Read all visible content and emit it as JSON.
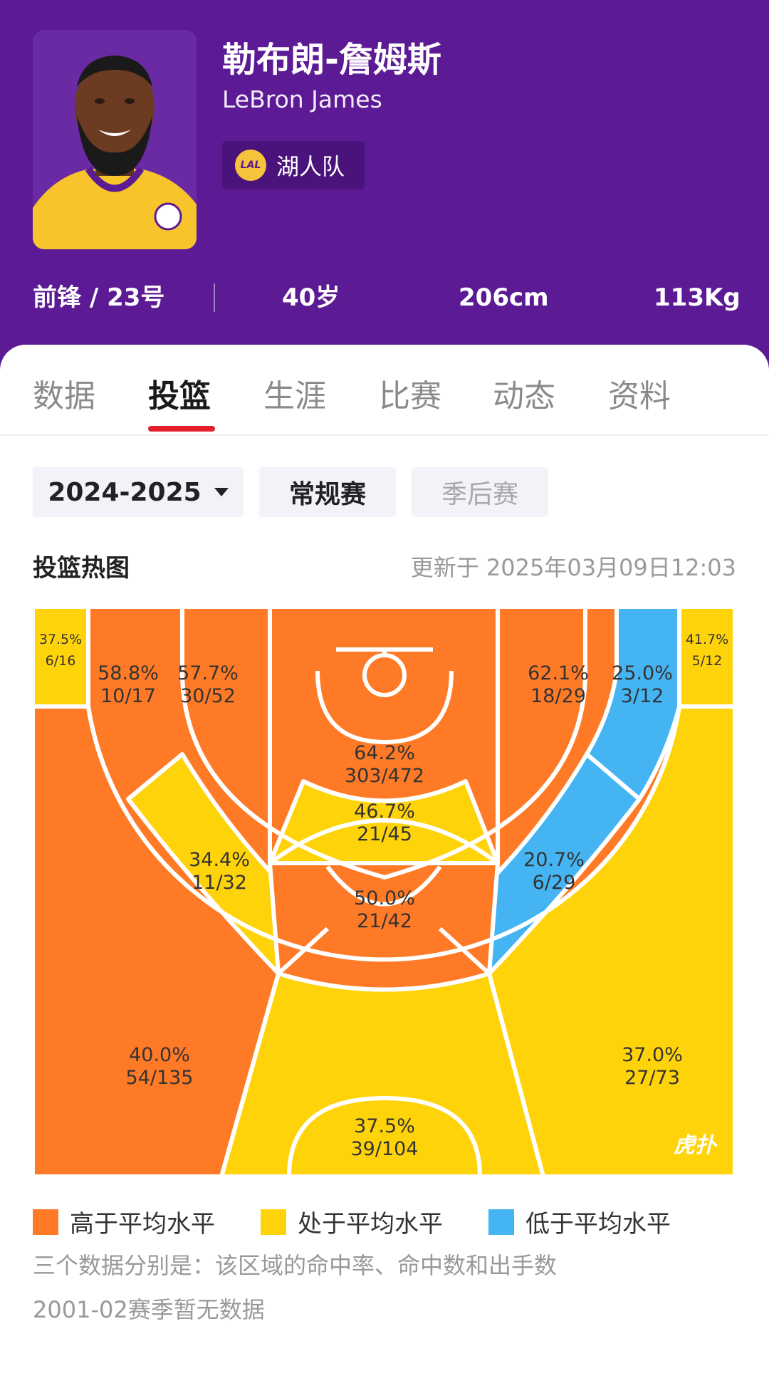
{
  "player": {
    "name_cn": "勒布朗-詹姆斯",
    "name_en": "LeBron James",
    "team": "湖人队",
    "team_logo_text": "LAL",
    "position_number": "前锋 / 23号",
    "age": "40岁",
    "height": "206cm",
    "weight": "113Kg"
  },
  "tabs": [
    "数据",
    "投篮",
    "生涯",
    "比赛",
    "动态",
    "资料"
  ],
  "active_tab": "投篮",
  "filters": {
    "season": "2024-2025",
    "regular": "常规赛",
    "playoffs": "季后赛"
  },
  "section": {
    "title": "投篮热图",
    "updated": "更新于 2025年03月09日12:03"
  },
  "colors": {
    "above": "#ff7a26",
    "average": "#ffd30a",
    "below": "#45b4f2",
    "header": "#5c1b94",
    "accent": "#e4202e"
  },
  "zones": [
    {
      "id": "left-corner-3",
      "pct": "37.5%",
      "made": "6/16",
      "level": "average"
    },
    {
      "id": "left-baseline-mid",
      "pct": "58.8%",
      "made": "10/17",
      "level": "above"
    },
    {
      "id": "left-short-mid",
      "pct": "57.7%",
      "made": "30/52",
      "level": "above"
    },
    {
      "id": "restricted-area",
      "pct": "64.2%",
      "made": "303/472",
      "level": "above"
    },
    {
      "id": "paint-non-ra",
      "pct": "46.7%",
      "made": "21/45",
      "level": "average"
    },
    {
      "id": "right-short-mid",
      "pct": "62.1%",
      "made": "18/29",
      "level": "above"
    },
    {
      "id": "right-baseline-mid",
      "pct": "25.0%",
      "made": "3/12",
      "level": "below"
    },
    {
      "id": "right-corner-3",
      "pct": "41.7%",
      "made": "5/12",
      "level": "average"
    },
    {
      "id": "left-elbow-mid",
      "pct": "34.4%",
      "made": "11/32",
      "level": "average"
    },
    {
      "id": "top-key-mid",
      "pct": "50.0%",
      "made": "21/42",
      "level": "above"
    },
    {
      "id": "right-elbow-mid",
      "pct": "20.7%",
      "made": "6/29",
      "level": "below"
    },
    {
      "id": "left-wing-3",
      "pct": "40.0%",
      "made": "54/135",
      "level": "above"
    },
    {
      "id": "top-3",
      "pct": "37.5%",
      "made": "39/104",
      "level": "average"
    },
    {
      "id": "right-wing-3",
      "pct": "37.0%",
      "made": "27/73",
      "level": "average"
    }
  ],
  "watermark": "虎扑",
  "legend": {
    "above": "高于平均水平",
    "average": "处于平均水平",
    "below": "低于平均水平"
  },
  "notes": [
    "三个数据分别是：该区域的命中率、命中数和出手数",
    "2001-02赛季暂无数据"
  ]
}
